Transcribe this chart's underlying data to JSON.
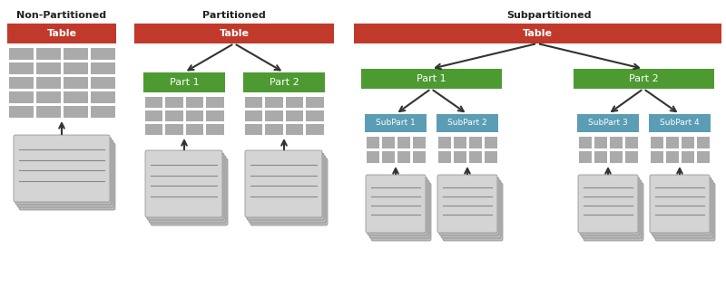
{
  "bg_color": "#ffffff",
  "title_color": "#222222",
  "red_color": "#c0392b",
  "green_color": "#4e9a32",
  "teal_color": "#5b9db5",
  "gray_cell": "#aaaaaa",
  "doc_main": "#d4d4d4",
  "doc_shadow": "#bbbbbb",
  "arrow_color": "#333333",
  "section_titles": [
    "Non-Partitioned",
    "Partitioned",
    "Subpartitioned"
  ],
  "fig_w": 8.0,
  "fig_h": 3.28,
  "dpi": 100
}
